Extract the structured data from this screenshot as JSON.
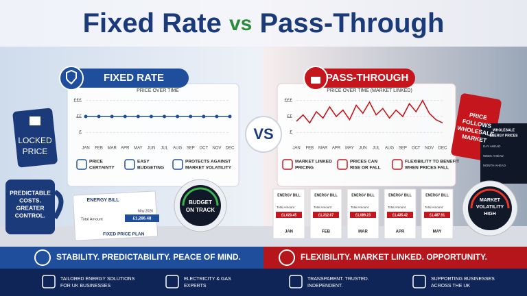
{
  "title": {
    "a": "Fixed Rate",
    "vs": "vs",
    "b": "Pass-Through"
  },
  "vs": "VS",
  "fixed": {
    "heading": "FIXED RATE",
    "chart": {
      "type": "line",
      "title": "PRICE OVER TIME",
      "categories": [
        "JAN",
        "FEB",
        "MAR",
        "APR",
        "MAY",
        "JUN",
        "JUL",
        "AUG",
        "SEP",
        "OCT",
        "NOV",
        "DEC"
      ],
      "values": [
        2,
        2,
        2,
        2,
        2,
        2,
        2,
        2,
        2,
        2,
        2,
        2
      ],
      "ylim": [
        0.5,
        3.2
      ],
      "yticks": [
        {
          "value": 3,
          "label": "£££"
        },
        {
          "value": 2,
          "label": "££"
        },
        {
          "value": 1,
          "label": "£"
        }
      ],
      "color": "#1f4e9c"
    },
    "features": [
      [
        "PRICE",
        "CERTAINTY"
      ],
      [
        "EASY",
        "BUDGETING"
      ],
      [
        "PROTECTS AGAINST",
        "MARKET VOLATILITY"
      ]
    ],
    "tag": [
      "LOCKED",
      "PRICE"
    ],
    "mug": [
      "PREDICTABLE",
      "COSTS.",
      "GREATER",
      "CONTROL."
    ],
    "bill": {
      "title": "ENERGY BILL",
      "date": "May 2026",
      "label": "Total Amount",
      "amount": "£1,286.48",
      "plan": "FIXED PRICE PLAN"
    },
    "gauge": [
      "BUDGET",
      "ON TRACK"
    ],
    "banner": "STABILITY. PREDICTABILITY. PEACE OF MIND."
  },
  "pass": {
    "heading": "PASS-THROUGH",
    "chart": {
      "type": "line",
      "title": "PRICE OVER TIME (MARKET LINKED)",
      "categories": [
        "JAN",
        "FEB",
        "MAR",
        "APR",
        "MAY",
        "JUN",
        "JUL",
        "AUG",
        "SEP",
        "OCT",
        "NOV",
        "DEC"
      ],
      "x": [
        0,
        0.5,
        1,
        1.5,
        2,
        2.5,
        3,
        3.5,
        4,
        4.5,
        5,
        5.5,
        6,
        6.5,
        7,
        7.5,
        8,
        8.5,
        9,
        9.5,
        10,
        10.5,
        11
      ],
      "values": [
        1.7,
        2.1,
        1.6,
        2.3,
        1.9,
        2.6,
        2.0,
        2.4,
        1.8,
        2.7,
        2.2,
        2.9,
        2.1,
        2.5,
        1.9,
        2.4,
        2.0,
        2.8,
        2.3,
        3.0,
        2.2,
        1.8,
        1.6
      ],
      "xlim": [
        0,
        11
      ],
      "ylim": [
        0.5,
        3.2
      ],
      "yticks": [
        {
          "value": 3,
          "label": "£££"
        },
        {
          "value": 2,
          "label": "££"
        },
        {
          "value": 1,
          "label": "£"
        }
      ],
      "color": "#c4161c"
    },
    "features": [
      [
        "MARKET LINKED",
        "PRICING"
      ],
      [
        "PRICES CAN",
        "RISE OR FALL"
      ],
      [
        "FLEXIBILITY TO BENEFIT",
        "WHEN PRICES FALL"
      ]
    ],
    "tag": [
      "PRICE",
      "FOLLOWS",
      "WHOLESALE",
      "MARKET"
    ],
    "screen": {
      "title": [
        "WHOLESALE",
        "ENERGY PRICES"
      ],
      "rows": [
        "DAY AHEAD",
        "WEEK AHEAD",
        "MONTH AHEAD"
      ]
    },
    "bills": {
      "title": "ENERGY BILL",
      "label": "Total Amount",
      "months": [
        "JAN",
        "FEB",
        "MAR",
        "APR",
        "MAY"
      ],
      "amounts": [
        "£1,020.45",
        "£1,312.67",
        "£1,689.23",
        "£1,435.42",
        "£1,487.91"
      ]
    },
    "gauge": [
      "MARKET",
      "VOLATILITY",
      "HIGH"
    ],
    "banner": "FLEXIBILITY. MARKET LINKED. OPPORTUNITY."
  },
  "footer": [
    [
      "TAILORED ENERGY SOLUTIONS",
      "FOR UK BUSINESSES"
    ],
    [
      "ELECTRICITY & GAS",
      "EXPERTS"
    ],
    [
      "TRANSPARENT. TRUSTED.",
      "INDEPENDENT."
    ],
    [
      "SUPPORTING BUSINESSES",
      "ACROSS THE UK"
    ]
  ]
}
